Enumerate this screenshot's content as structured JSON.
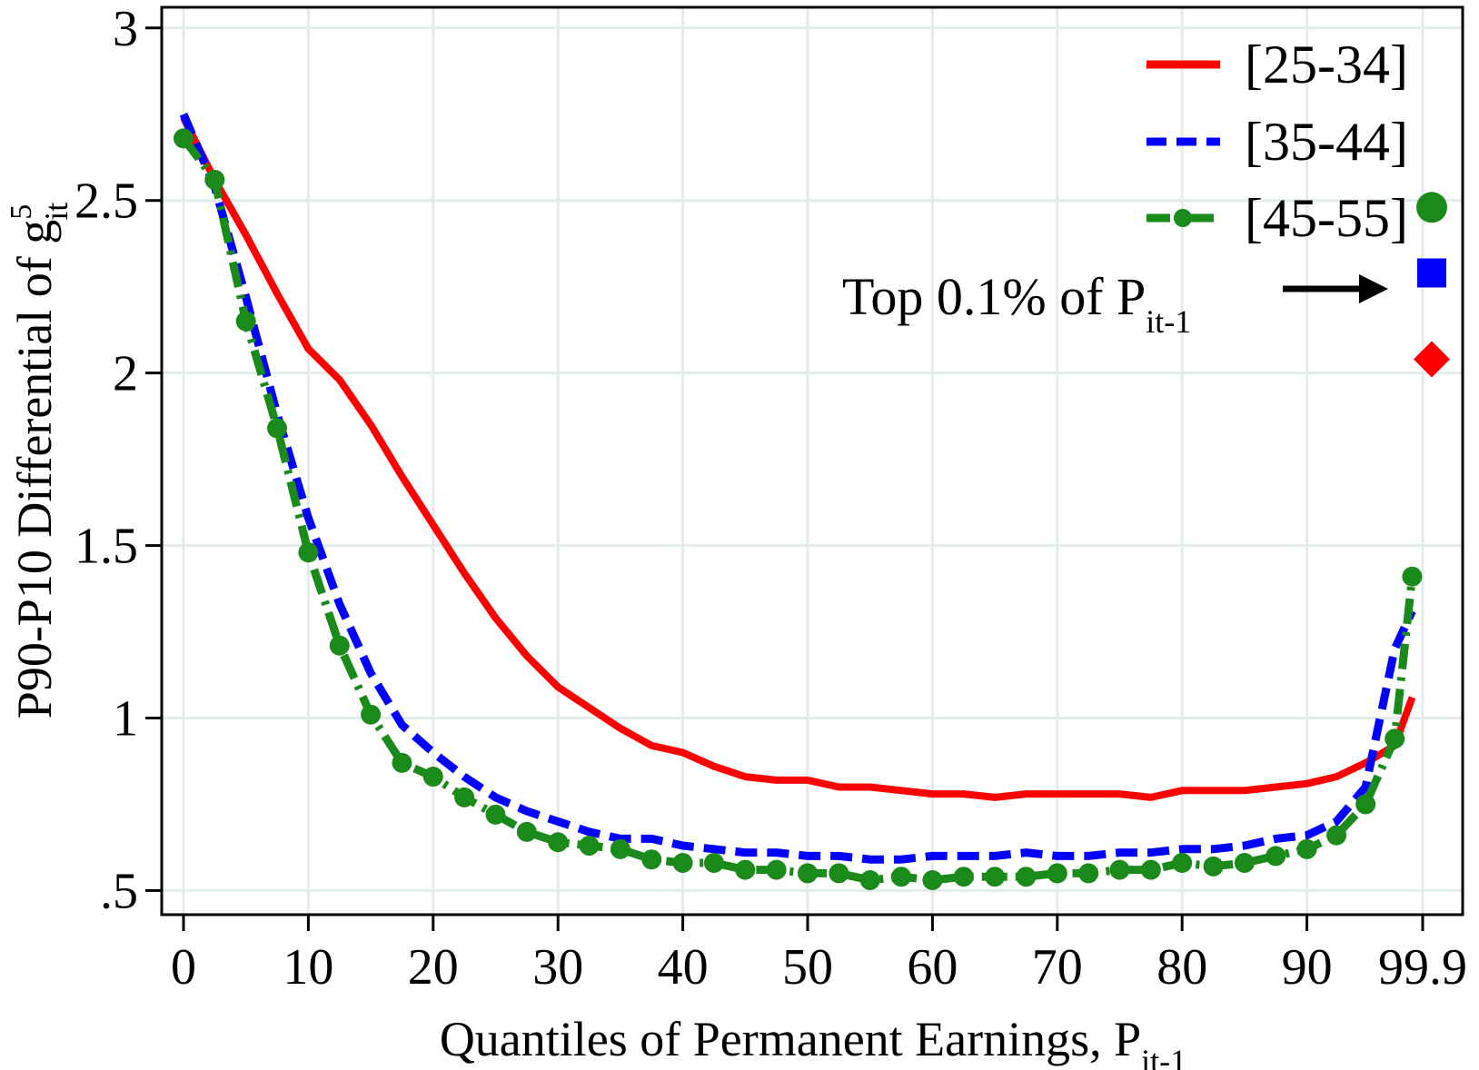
{
  "chart_data": {
    "type": "line",
    "xlabel": "Quantiles of Permanent Earnings, P",
    "xlabel_sub": "it-1",
    "ylabel": "P90-P10 Differential of g",
    "ylabel_sup": "5",
    "ylabel_sub": "it",
    "xlim": [
      -1.5,
      99.9
    ],
    "ylim": [
      0.43,
      3.06
    ],
    "x_ticks": [
      0,
      10,
      20,
      30,
      40,
      50,
      60,
      70,
      80,
      90,
      99.9
    ],
    "x_tick_labels": [
      "0",
      "10",
      "20",
      "30",
      "40",
      "50",
      "60",
      "70",
      "80",
      "90",
      "99.9"
    ],
    "y_ticks": [
      0.5,
      1,
      1.5,
      2,
      2.5,
      3
    ],
    "y_tick_labels": [
      ".5",
      "1",
      "1.5",
      "2",
      "2.5",
      "3"
    ],
    "grid": true,
    "legend_position": "top-right",
    "annotation": {
      "text": "Top 0.1% of P",
      "sub": "it-1"
    },
    "x": [
      0,
      2.5,
      5,
      7.5,
      10,
      12.5,
      15,
      17.5,
      20,
      22.5,
      25,
      27.5,
      30,
      32.5,
      35,
      37.5,
      40,
      42.5,
      45,
      47.5,
      50,
      52.5,
      55,
      57.5,
      60,
      62.5,
      65,
      67.5,
      70,
      72.5,
      75,
      77.5,
      80,
      82.5,
      85,
      87.5,
      90,
      92.5,
      95,
      97.5,
      99,
      99.9
    ],
    "series": [
      {
        "name": "[25-34]",
        "color": "#ff0000",
        "style": "solid",
        "values": [
          2.74,
          2.56,
          2.4,
          2.23,
          2.07,
          1.98,
          1.85,
          1.7,
          1.56,
          1.42,
          1.29,
          1.18,
          1.09,
          1.03,
          0.97,
          0.92,
          0.9,
          0.86,
          0.83,
          0.82,
          0.82,
          0.8,
          0.8,
          0.79,
          0.78,
          0.78,
          0.77,
          0.78,
          0.78,
          0.78,
          0.78,
          0.77,
          0.79,
          0.79,
          0.79,
          0.8,
          0.81,
          0.83,
          0.87,
          0.92,
          1.06,
          2.04
        ],
        "top_marker": "diamond",
        "top_value": 2.04
      },
      {
        "name": "[35-44]",
        "color": "#0000ff",
        "style": "dashed",
        "values": [
          2.75,
          2.54,
          2.22,
          1.88,
          1.58,
          1.33,
          1.13,
          0.98,
          0.9,
          0.83,
          0.77,
          0.73,
          0.7,
          0.67,
          0.65,
          0.65,
          0.63,
          0.62,
          0.61,
          0.61,
          0.6,
          0.6,
          0.59,
          0.59,
          0.6,
          0.6,
          0.6,
          0.61,
          0.6,
          0.6,
          0.61,
          0.61,
          0.62,
          0.62,
          0.63,
          0.65,
          0.66,
          0.7,
          0.8,
          1.2,
          1.31,
          2.29
        ],
        "top_marker": "square",
        "top_value": 2.29
      },
      {
        "name": "[45-55]",
        "color": "#1a8a1a",
        "style": "dash-dot with circles",
        "values": [
          2.68,
          2.56,
          2.15,
          1.84,
          1.48,
          1.21,
          1.01,
          0.87,
          0.83,
          0.77,
          0.72,
          0.67,
          0.64,
          0.63,
          0.62,
          0.59,
          0.58,
          0.58,
          0.56,
          0.56,
          0.55,
          0.55,
          0.53,
          0.54,
          0.53,
          0.54,
          0.54,
          0.54,
          0.55,
          0.55,
          0.56,
          0.56,
          0.58,
          0.57,
          0.58,
          0.6,
          0.62,
          0.66,
          0.75,
          0.94,
          1.41,
          2.48
        ],
        "top_marker": "circle",
        "top_value": 2.48
      }
    ]
  }
}
